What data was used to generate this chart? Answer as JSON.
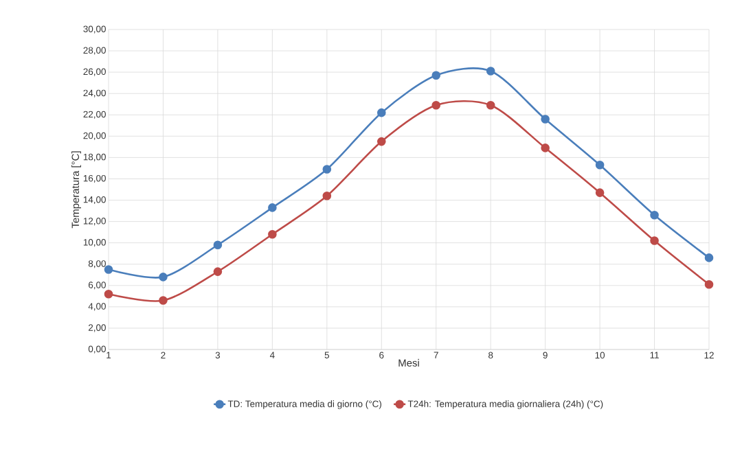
{
  "chart_data": {
    "type": "line",
    "xlabel": "Mesi",
    "ylabel": "Temperatura [°C]",
    "x": [
      1,
      2,
      3,
      4,
      5,
      6,
      7,
      8,
      9,
      10,
      11,
      12
    ],
    "series": [
      {
        "name": "TD: Temperatura media di giorno (°C)",
        "color": "#4a7ebb",
        "values": [
          7.5,
          6.8,
          9.8,
          13.3,
          16.9,
          22.2,
          25.7,
          26.1,
          21.6,
          17.3,
          12.6,
          8.6
        ]
      },
      {
        "name": "T24h: Temperatura media giornaliera (24h) (°C)",
        "color": "#be4b48",
        "values": [
          5.2,
          4.6,
          7.3,
          10.8,
          14.4,
          19.5,
          22.9,
          22.9,
          18.9,
          14.7,
          10.2,
          6.1
        ]
      }
    ],
    "xlim": [
      1,
      12
    ],
    "xticks": [
      1,
      2,
      3,
      4,
      5,
      6,
      7,
      8,
      9,
      10,
      11,
      12
    ],
    "ylim": [
      0,
      30
    ],
    "yticks": [
      {
        "value": 0,
        "label": "0,00"
      },
      {
        "value": 2,
        "label": "2,00"
      },
      {
        "value": 4,
        "label": "4,00"
      },
      {
        "value": 6,
        "label": "6,00"
      },
      {
        "value": 8,
        "label": "8,00"
      },
      {
        "value": 10,
        "label": "10,00"
      },
      {
        "value": 12,
        "label": "12,00"
      },
      {
        "value": 14,
        "label": "14,00"
      },
      {
        "value": 16,
        "label": "16,00"
      },
      {
        "value": 18,
        "label": "18,00"
      },
      {
        "value": 20,
        "label": "20,00"
      },
      {
        "value": 22,
        "label": "22,00"
      },
      {
        "value": 24,
        "label": "24,00"
      },
      {
        "value": 26,
        "label": "26,00"
      },
      {
        "value": 28,
        "label": "28,00"
      },
      {
        "value": 30,
        "label": "30,00"
      }
    ],
    "grid": true,
    "legend": "bottom",
    "marker": "circle",
    "line_style": "solid"
  }
}
